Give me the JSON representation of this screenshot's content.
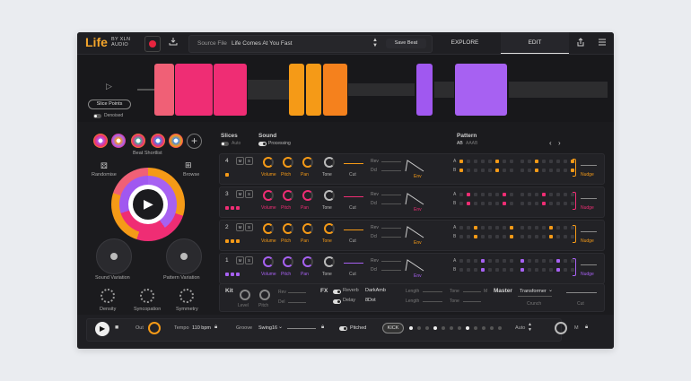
{
  "header": {
    "logo": "Life",
    "logo_sub1": "BY XLN",
    "logo_sub2": "AUDIO",
    "source_label": "Source File",
    "source_value": "Life Comes At You Fast",
    "save_beat": "Save Beat",
    "tabs": [
      "EXPLORE",
      "EDIT"
    ],
    "active_tab": "EDIT"
  },
  "waveform": {
    "slice_points": "Slice Points",
    "denoised": "Denoised",
    "segment_colors": [
      "#f06076",
      "#ef2d74",
      "#ef2d74",
      "#f59a17",
      "#f59a17",
      "#f5811d",
      "#a058f0",
      "#a761f2"
    ]
  },
  "left": {
    "beat_shortlist": "Beat Shortlist",
    "randomise": "Randomise",
    "browse": "Browse",
    "sound_variation": "Sound Variation",
    "pattern_variation": "Pattern Variation",
    "density": "Density",
    "syncopation": "Syncopation",
    "symmetry": "Symmetry"
  },
  "columns": {
    "slices": "Slices",
    "auto": "Auto",
    "sound": "Sound",
    "processing": "Processing",
    "pattern": "Pattern",
    "pattern_ab": "AB",
    "pattern_aaab": "AAAB"
  },
  "lanes": [
    {
      "num": "4",
      "color": "#f59a17",
      "tone_color": "#bbb",
      "labels": [
        "Volume",
        "Pitch",
        "Pan",
        "Tone",
        "Cut",
        "Env",
        "Nudge"
      ]
    },
    {
      "num": "3",
      "color": "#ef2d74",
      "tone_color": "#bbb",
      "labels": [
        "Volume",
        "Pitch",
        "Pan",
        "Tone",
        "Cut",
        "Env",
        "Nudge"
      ]
    },
    {
      "num": "2",
      "color": "#f59a17",
      "tone_color": "#f59a17",
      "labels": [
        "Volume",
        "Pitch",
        "Pan",
        "Tone",
        "Cut",
        "Env",
        "Nudge"
      ]
    },
    {
      "num": "1",
      "color": "#a761f2",
      "tone_color": "#bbb",
      "labels": [
        "Volume",
        "Pitch",
        "Pan",
        "Tone",
        "Cut",
        "Env",
        "Nudge"
      ]
    }
  ],
  "lane_small": {
    "m": "M",
    "s": "S",
    "rev": "Rev",
    "dcl": "Dcl",
    "a": "A",
    "b": "B"
  },
  "kit": {
    "title": "Kit",
    "level": "Level",
    "pitch": "Pitch",
    "rev": "Rev",
    "del": "Del"
  },
  "fx": {
    "title": "FX",
    "reverb": "Reverb",
    "reverb_value": "DarkAmb",
    "delay": "Delay",
    "delay_value": "8Dot",
    "length": "Length",
    "tone": "Tone",
    "m": "M"
  },
  "master": {
    "title": "Master",
    "preset": "Transformer",
    "crunch": "Crunch",
    "cut": "Cut"
  },
  "transport": {
    "out": "Out",
    "tempo_label": "Tempo",
    "tempo_value": "110 bpm",
    "groove_label": "Groove",
    "groove_value": "Swing16",
    "pitched": "Pitched",
    "kick": "KICK",
    "auto": "Auto",
    "m": "M"
  },
  "colors": {
    "orange": "#f59a17",
    "pink": "#ef2d74",
    "purple": "#a761f2",
    "bg": "#1b1b1e"
  }
}
